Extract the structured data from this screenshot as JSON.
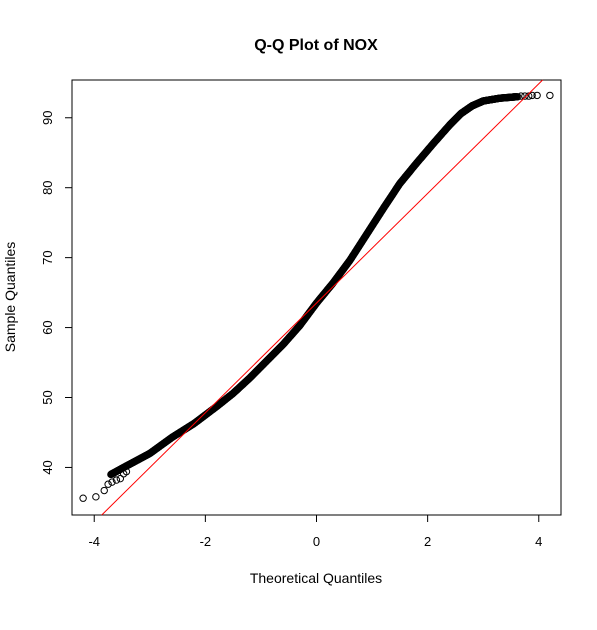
{
  "chart_data": {
    "type": "scatter",
    "title": "Q-Q Plot of NOX",
    "xlabel": "Theoretical Quantiles",
    "ylabel": "Sample Quantiles",
    "xlim": [
      -4.4,
      4.4
    ],
    "ylim": [
      33.2,
      95.4
    ],
    "x_ticks": [
      -4,
      -2,
      0,
      2,
      4
    ],
    "x_tick_labels": [
      "-4",
      "-2",
      "0",
      "2",
      "4"
    ],
    "y_ticks": [
      40,
      50,
      60,
      70,
      80,
      90
    ],
    "y_tick_labels": [
      "40",
      "50",
      "60",
      "70",
      "80",
      "90"
    ],
    "grid": false,
    "legend": "none",
    "point_color": "#000000",
    "line_color": "#ff0000",
    "qq_line": {
      "slope": 7.84,
      "intercept": 63.5
    },
    "curve_points": [
      [
        -3.7,
        39.0
      ],
      [
        -3.4,
        40.3
      ],
      [
        -3.0,
        42.0
      ],
      [
        -2.6,
        44.3
      ],
      [
        -2.2,
        46.3
      ],
      [
        -1.8,
        48.7
      ],
      [
        -1.5,
        50.6
      ],
      [
        -1.2,
        52.8
      ],
      [
        -0.9,
        55.2
      ],
      [
        -0.6,
        57.6
      ],
      [
        -0.3,
        60.3
      ],
      [
        0.0,
        63.5
      ],
      [
        0.3,
        66.4
      ],
      [
        0.6,
        69.6
      ],
      [
        0.9,
        73.3
      ],
      [
        1.2,
        77.0
      ],
      [
        1.5,
        80.6
      ],
      [
        1.8,
        83.5
      ],
      [
        2.1,
        86.3
      ],
      [
        2.4,
        89.0
      ],
      [
        2.6,
        90.6
      ],
      [
        2.8,
        91.7
      ],
      [
        3.0,
        92.4
      ],
      [
        3.3,
        92.8
      ],
      [
        3.6,
        93.0
      ]
    ],
    "outlier_points": [
      [
        -4.2,
        35.6
      ],
      [
        -3.97,
        35.8
      ],
      [
        -3.82,
        36.7
      ],
      [
        -3.75,
        37.6
      ],
      [
        -3.68,
        37.9
      ],
      [
        -3.6,
        38.2
      ],
      [
        -3.53,
        38.4
      ],
      [
        -3.47,
        39.1
      ],
      [
        -3.42,
        39.4
      ],
      [
        3.55,
        93.0
      ],
      [
        3.62,
        93.0
      ],
      [
        3.68,
        93.1
      ],
      [
        3.75,
        93.1
      ],
      [
        3.82,
        93.1
      ],
      [
        3.88,
        93.2
      ],
      [
        3.97,
        93.2
      ],
      [
        4.2,
        93.2
      ]
    ]
  }
}
